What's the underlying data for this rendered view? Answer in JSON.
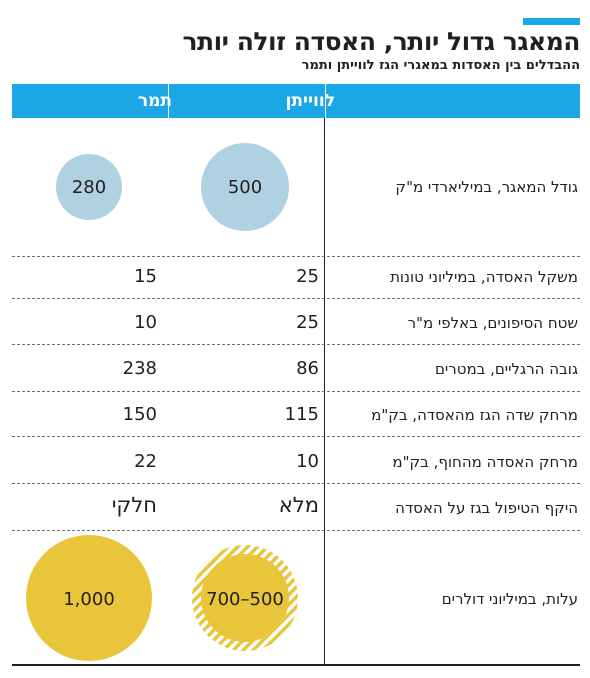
{
  "title": "המאגר גדול יותר, האסדה זולה יותר",
  "subtitle": "ההבדלים בין האסדות במאגרי הגז לווייתן ותמר",
  "colors": {
    "accent": "#1ba7e6",
    "bubble_blue": "#b0d1e2",
    "bubble_yellow": "#e8c53a",
    "text": "#231f20"
  },
  "table": {
    "columns": [
      "לווייתן",
      "תמר"
    ],
    "rows": [
      {
        "label": "גודל המאגר, במיליארדי מ\"ק",
        "leviathan": "500",
        "tamar": "280"
      },
      {
        "label": "משקל האסדה, במיליוני טונות",
        "leviathan": "25",
        "tamar": "15"
      },
      {
        "label": "שטח הסיפונים, באלפי מ\"ר",
        "leviathan": "25",
        "tamar": "10"
      },
      {
        "label": "גובה הרגליים, במטרים",
        "leviathan": "86",
        "tamar": "238"
      },
      {
        "label": "מרחק שדה הגז מהאסדה, בק\"מ",
        "leviathan": "115",
        "tamar": "150"
      },
      {
        "label": "מרחק האסדה מהחוף, בק\"מ",
        "leviathan": "10",
        "tamar": "22"
      },
      {
        "label": "היקף הטיפול בגז על האסדה",
        "leviathan": "מלא",
        "tamar": "חלקי"
      },
      {
        "label": "עלות, במיליוני דולרים",
        "leviathan": "700–500",
        "tamar": "1,000"
      }
    ]
  },
  "chart_data": {
    "type": "table",
    "title": "המאגר גדול יותר, האסדה זולה יותר",
    "subtitle": "ההבדלים בין האסדות במאגרי הגז לווייתן ותמר",
    "columns": [
      "לווייתן",
      "תמר"
    ],
    "bubbles": [
      {
        "metric": "גודל המאגר, במיליארדי מ\"ק",
        "leviathan": 500,
        "tamar": 280,
        "color": "#b0d1e2"
      },
      {
        "metric": "עלות, במיליוני דולרים",
        "leviathan": [
          500,
          700
        ],
        "tamar": 1000,
        "color": "#e8c53a"
      }
    ]
  }
}
